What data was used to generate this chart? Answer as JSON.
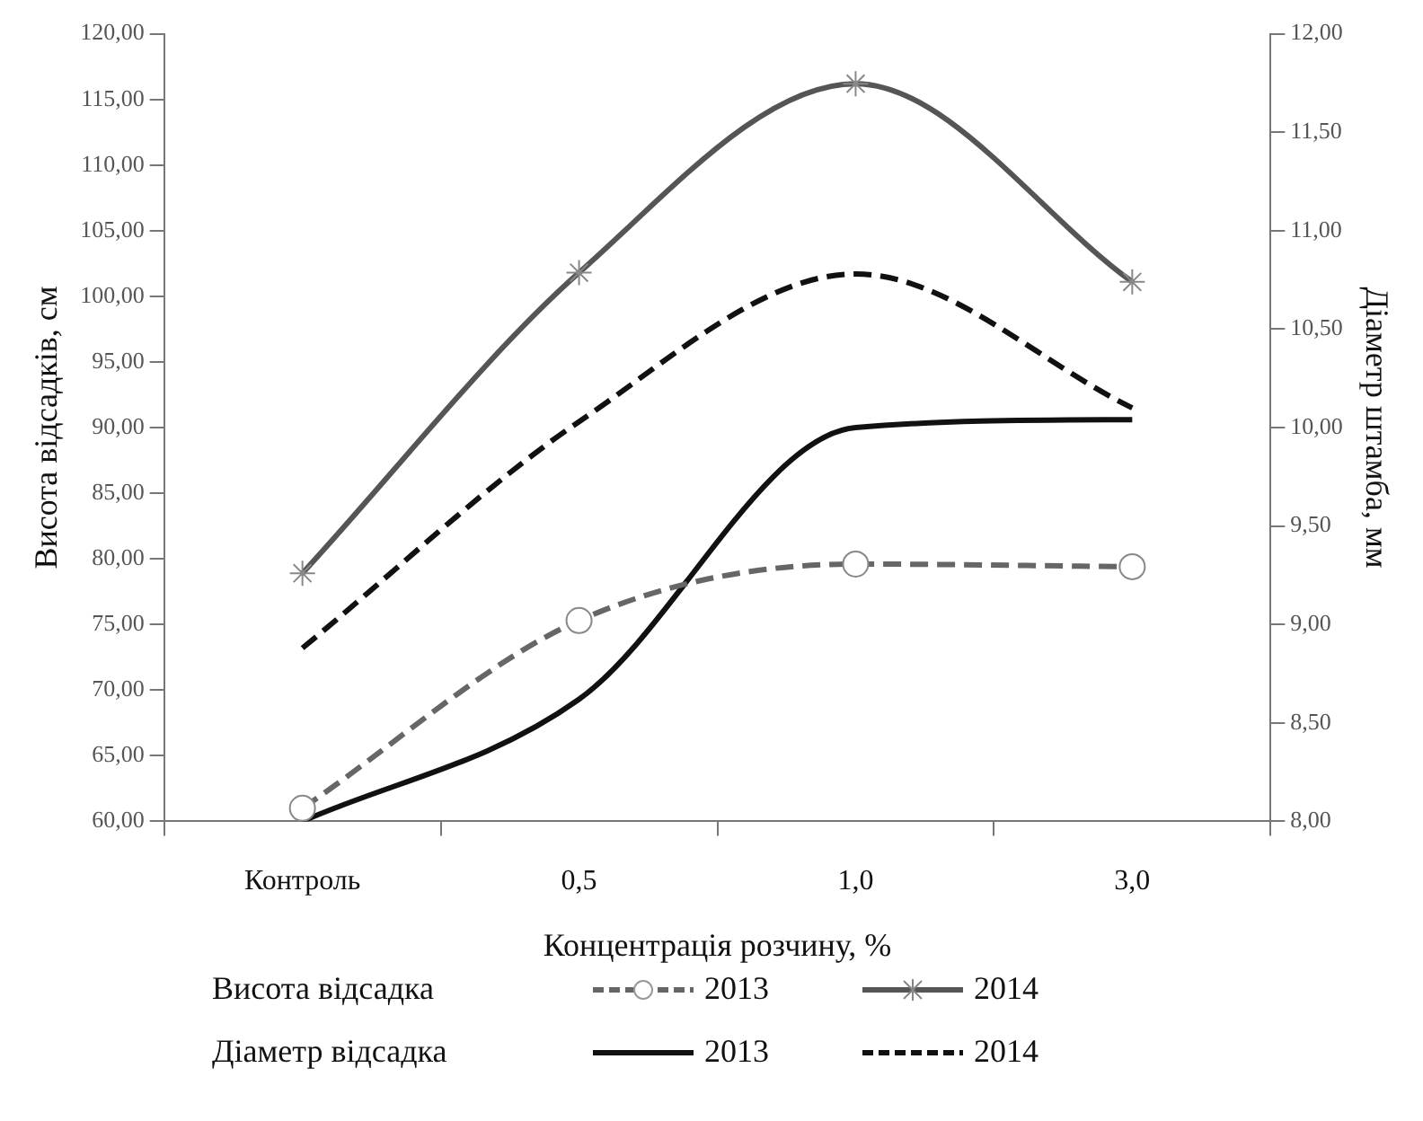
{
  "chart_data": {
    "type": "line",
    "xlabel": "Концентрація розчину, %",
    "ylabel": "Висота відсадків, см",
    "y2label": "Діаметр штамба, мм",
    "categories": [
      "Контроль",
      "0,5",
      "1,0",
      "3,0"
    ],
    "series": [
      {
        "name": "2013",
        "color": "#666666",
        "values": [
          61.0,
          75.3,
          79.6,
          79.4
        ],
        "marker": "circle",
        "line_style": "dashed"
      },
      {
        "name": "2014",
        "color": "#555555",
        "values": [
          78.9,
          101.8,
          116.2,
          101.1
        ],
        "marker": "cross",
        "line_style": "solid"
      },
      {
        "name": "2013",
        "color": "#111111",
        "values": [
          8.0,
          8.62,
          10.0,
          10.04
        ],
        "axis": "y2",
        "marker": "none",
        "line_style": "solid"
      },
      {
        "name": "2014",
        "color": "#111111",
        "values": [
          8.88,
          10.03,
          10.78,
          10.1
        ],
        "axis": "y2",
        "marker": "none",
        "line_style": "dashed"
      }
    ],
    "ylim": [
      60,
      120
    ],
    "yticks": [
      {
        "value": 60,
        "label": "60,00"
      },
      {
        "value": 65,
        "label": "65,00"
      },
      {
        "value": 70,
        "label": "70,00"
      },
      {
        "value": 75,
        "label": "75,00"
      },
      {
        "value": 80,
        "label": "80,00"
      },
      {
        "value": 85,
        "label": "85,00"
      },
      {
        "value": 90,
        "label": "90,00"
      },
      {
        "value": 95,
        "label": "95,00"
      },
      {
        "value": 100,
        "label": "100,00"
      },
      {
        "value": 105,
        "label": "105,00"
      },
      {
        "value": 110,
        "label": "110,00"
      },
      {
        "value": 115,
        "label": "115,00"
      },
      {
        "value": 120,
        "label": "120,00"
      }
    ],
    "y2lim": [
      8,
      12
    ],
    "y2ticks": [
      {
        "value": 8,
        "label": "8,00"
      },
      {
        "value": 8.5,
        "label": "8,50"
      },
      {
        "value": 9,
        "label": "9,00"
      },
      {
        "value": 9.5,
        "label": "9,50"
      },
      {
        "value": 10,
        "label": "10,00"
      },
      {
        "value": 10.5,
        "label": "10,50"
      },
      {
        "value": 11,
        "label": "11,00"
      },
      {
        "value": 11.5,
        "label": "11,50"
      },
      {
        "value": 12,
        "label": "12,00"
      }
    ],
    "grid": false,
    "legend": "bottom",
    "annotations": [
      "Висота відсадка",
      "Діаметр відсадка"
    ]
  }
}
